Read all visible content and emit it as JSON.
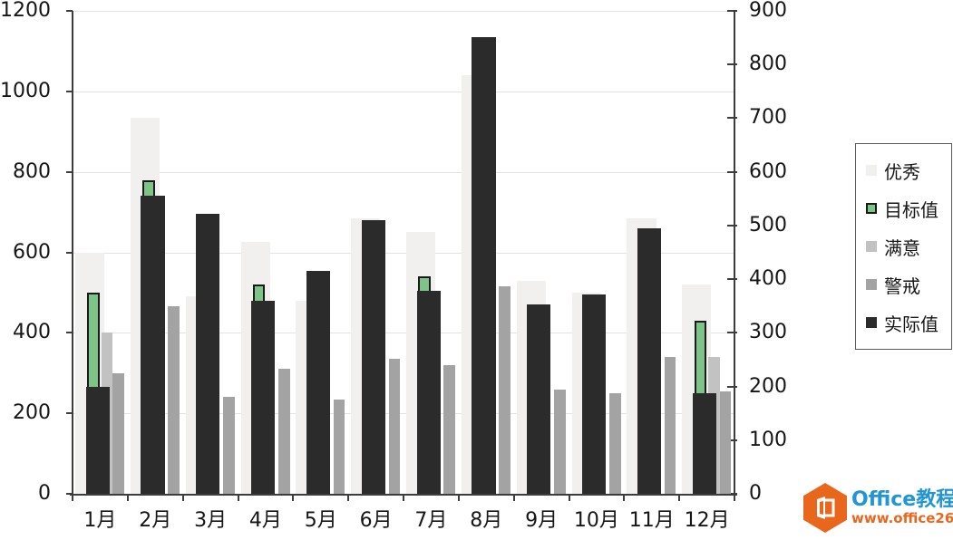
{
  "chart_data": {
    "type": "bar",
    "title": "",
    "categories": [
      "1月",
      "2月",
      "3月",
      "4月",
      "5月",
      "6月",
      "7月",
      "8月",
      "9月",
      "10月",
      "11月",
      "12月"
    ],
    "series": [
      {
        "name": "优秀",
        "key": "excellent",
        "color": "#f1f0ee",
        "values": [
          600,
          935,
          490,
          625,
          480,
          685,
          650,
          1040,
          530,
          500,
          685,
          520
        ]
      },
      {
        "name": "满意",
        "key": "satisfactory",
        "color": "#c2c2c2",
        "values": [
          400,
          null,
          null,
          null,
          null,
          null,
          null,
          null,
          null,
          null,
          null,
          340
        ]
      },
      {
        "name": "警戒",
        "key": "warning",
        "color": "#a3a3a3",
        "values": [
          300,
          465,
          240,
          310,
          235,
          335,
          320,
          515,
          260,
          250,
          340,
          255
        ]
      },
      {
        "name": "目标值",
        "key": "target",
        "color": "#7ec489",
        "border_color": "#1a1a1a",
        "values": [
          500,
          780,
          null,
          520,
          null,
          null,
          540,
          null,
          null,
          null,
          null,
          430
        ]
      },
      {
        "name": "实际值",
        "key": "actual",
        "color": "#2b2b2b",
        "values": [
          265,
          740,
          695,
          480,
          555,
          680,
          505,
          1135,
          470,
          495,
          660,
          250
        ]
      }
    ],
    "legend_order": [
      "excellent",
      "target",
      "satisfactory",
      "warning",
      "actual"
    ],
    "legend_position": "right",
    "grid": true,
    "left_axis": {
      "min": 0,
      "max": 1200,
      "step": 200,
      "ticks": [
        1200,
        1000,
        800,
        600,
        400,
        200,
        0
      ]
    },
    "right_axis": {
      "min": 0,
      "max": 900,
      "step": 100,
      "ticks": [
        900,
        800,
        700,
        600,
        500,
        400,
        300,
        200,
        100,
        0
      ]
    }
  },
  "watermark": {
    "site_name": "Office教程网",
    "site_url": "www.office26.com",
    "brand_orange": "#e8671d",
    "brand_blue": "#2196d3"
  }
}
